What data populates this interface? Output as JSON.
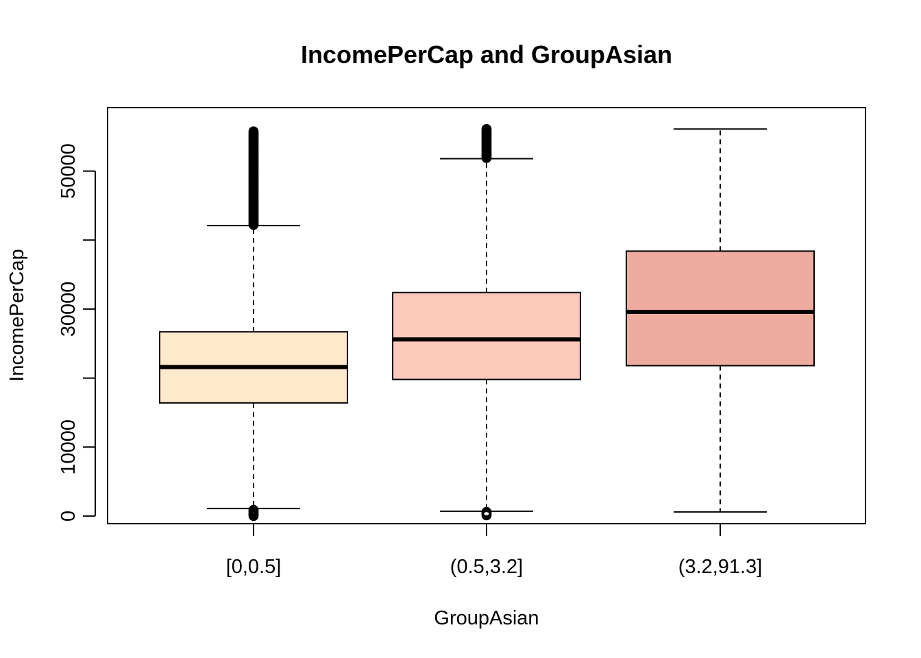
{
  "chart_data": {
    "type": "box",
    "title": "IncomePerCap and GroupAsian",
    "xlabel": "GroupAsian",
    "ylabel": "IncomePerCap",
    "categories": [
      "[0,0.5]",
      "(0.5,3.2]",
      "(3.2,91.3]"
    ],
    "y_ticks": [
      0,
      10000,
      20000,
      30000,
      40000,
      50000
    ],
    "y_tick_labels": [
      "0",
      "10000",
      "",
      "30000",
      "",
      "50000"
    ],
    "ylim": [
      -1100,
      59200
    ],
    "grid": false,
    "boxes": [
      {
        "category": "[0,0.5]",
        "whisker_low": 1100,
        "q1": 16400,
        "median": 21600,
        "q3": 26700,
        "whisker_high": 42100,
        "fill": "#FFE8CC",
        "outliers_high_range": [
          42200,
          55800
        ],
        "outliers_low": [
          0,
          100,
          200,
          300,
          400,
          500,
          600,
          700,
          800,
          900
        ]
      },
      {
        "category": "(0.5,3.2]",
        "whisker_low": 700,
        "q1": 19800,
        "median": 25600,
        "q3": 32400,
        "whisker_high": 51800,
        "fill": "#FCC9BA",
        "outliers_high_range": [
          51900,
          56100
        ],
        "outliers_low": [
          100,
          200,
          300,
          400,
          500,
          600
        ]
      },
      {
        "category": "(3.2,91.3]",
        "whisker_low": 600,
        "q1": 21800,
        "median": 29600,
        "q3": 38400,
        "whisker_high": 56100,
        "fill": "#EEABA0"
      }
    ]
  }
}
